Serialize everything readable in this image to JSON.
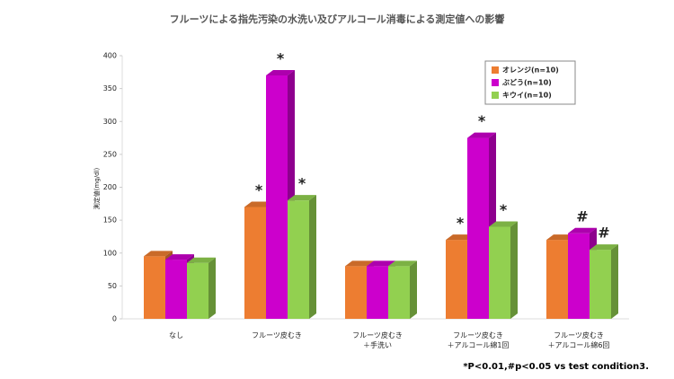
{
  "chart_data": {
    "type": "bar3d",
    "title": "フルーツによる指先汚染の水洗い及びアルコール消毒による測定値への影響",
    "y_label": "測定値(mg/dl)",
    "footnote": "*P<0.01,#p<0.05 vs test condition3.",
    "categories": [
      "なし",
      "フルーツ皮むき",
      "フルーツ皮むき\n＋手洗い",
      "フルーツ皮むき\n＋アルコール綿1回",
      "フルーツ皮むき\n＋アルコール綿6回"
    ],
    "series": [
      {
        "name": "オレンジ(n=10)",
        "color": "#ed7d31",
        "values": [
          95,
          170,
          80,
          120,
          120
        ],
        "annotations": [
          null,
          "*",
          null,
          "*",
          null
        ]
      },
      {
        "name": "ぶどう(n=10)",
        "color": "#cc00cc",
        "values": [
          90,
          370,
          80,
          275,
          130
        ],
        "annotations": [
          null,
          "*",
          null,
          "*",
          "#"
        ]
      },
      {
        "name": "キウイ(n=10)",
        "color": "#92d050",
        "values": [
          85,
          180,
          80,
          140,
          105
        ],
        "annotations": [
          null,
          "*",
          null,
          "*",
          "#"
        ]
      }
    ],
    "ylim": [
      0,
      400
    ],
    "yticks": [
      0,
      50,
      100,
      150,
      200,
      250,
      300,
      350,
      400
    ],
    "legend": "upper right"
  }
}
